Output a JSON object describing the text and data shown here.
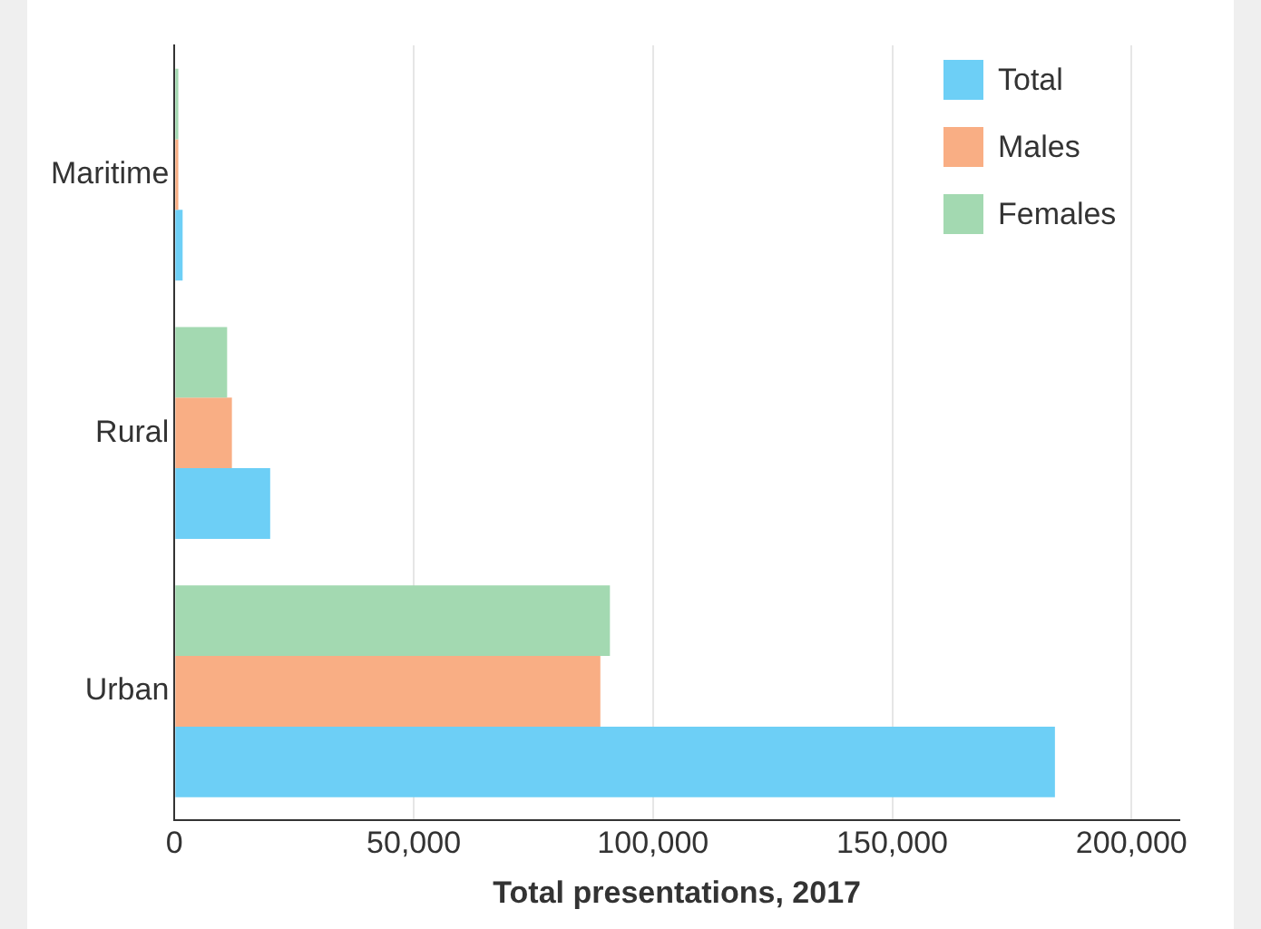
{
  "chart_data": {
    "type": "bar",
    "orientation": "horizontal",
    "xlabel": "Total presentations, 2017",
    "categories": [
      "Maritime",
      "Rural",
      "Urban"
    ],
    "series": [
      {
        "name": "Total",
        "color": "#6dcff6",
        "values": [
          1700,
          20000,
          184000
        ]
      },
      {
        "name": "Males",
        "color": "#f9ae84",
        "values": [
          800,
          12000,
          89000
        ]
      },
      {
        "name": "Females",
        "color": "#a3d9b1",
        "values": [
          800,
          11000,
          91000
        ]
      }
    ],
    "xlim": [
      0,
      210000
    ],
    "xticks": [
      0,
      {
        "value": 50000,
        "label": "50,000"
      },
      {
        "value": 100000,
        "label": "100,000"
      },
      {
        "value": 150000,
        "label": "150,000"
      },
      {
        "value": 200000,
        "label": "200,000"
      }
    ],
    "grid": "x",
    "legend": "top right"
  }
}
